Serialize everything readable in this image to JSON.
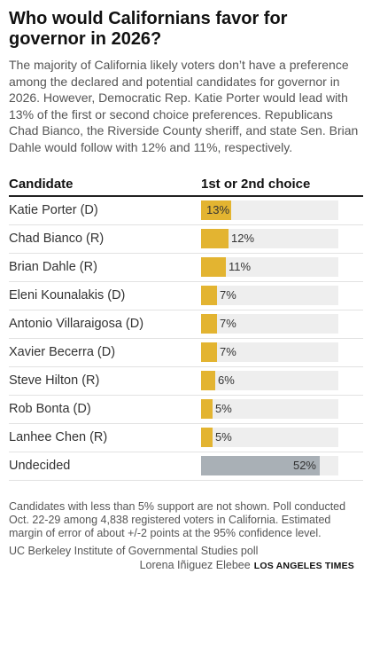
{
  "header": {
    "title": "Who would Californians favor for governor in 2026?",
    "intro": "The majority of California likely voters don’t have a preference among the declared and potential candidates for governor in 2026. However, Democratic Rep. Katie Porter would lead with 13% of the first or second choice preferences. Republicans Chad Bianco, the Riverside County sheriff, and state Sen. Brian Dahle would follow with 12% and 11%, respectively."
  },
  "colors": {
    "bar": "#e3b431",
    "undecided_bar": "#a9b0b6",
    "track": "#eeeeee"
  },
  "chart_data": {
    "type": "bar",
    "column_headers": [
      "Candidate",
      "1st or 2nd choice"
    ],
    "categories": [
      "Katie Porter (D)",
      "Chad Bianco (R)",
      "Brian Dahle (R)",
      "Eleni Kounalakis (D)",
      "Antonio Villaraigosa (D)",
      "Xavier Becerra (D)",
      "Steve Hilton (R)",
      "Rob Bonta (D)",
      "Lanhee Chen (R)",
      "Undecided"
    ],
    "values": [
      13,
      12,
      11,
      7,
      7,
      7,
      6,
      5,
      5,
      52
    ],
    "value_labels": [
      "13%",
      "12%",
      "11%",
      "7%",
      "7%",
      "7%",
      "6%",
      "5%",
      "5%",
      "52%"
    ],
    "xlim": [
      0,
      60
    ]
  },
  "footer": {
    "note": "Candidates with less than 5% support are not shown. Poll conducted Oct. 22-29 among 4,838 registered voters in California. Estimated margin of error of about +/-2 points at the 95% confidence level.",
    "source": "UC Berkeley Institute of Governmental Studies poll",
    "credit": "Lorena Iñiguez Elebee",
    "brand": "LOS ANGELES TIMES"
  }
}
